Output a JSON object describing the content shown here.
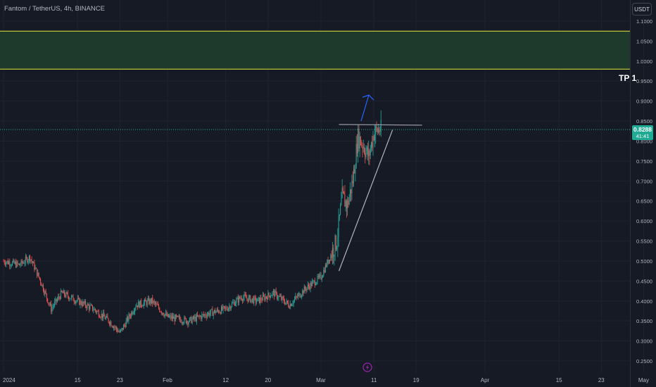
{
  "header": {
    "title": "Fantom / TetherUS, 4h, BINANCE",
    "currency": "USDT"
  },
  "current_price": {
    "price": "0.8288",
    "countdown": "41:41",
    "color": "#22ab94"
  },
  "annotations": {
    "target_label": "TP 1",
    "target_zone": {
      "low": 0.98,
      "high": 1.075,
      "fill": "#1e3a2c",
      "border": "#e8e83a"
    },
    "resistance_line": {
      "x0": "Mar 4",
      "x1": "Mar 14",
      "y": 0.845
    },
    "trend_line": {
      "x0": "Mar 4",
      "y0": 0.475,
      "x1": "Mar 14",
      "y1": 0.828
    },
    "projection_arrow": {
      "from": 0.85,
      "to": 0.915,
      "color": "#2962ff"
    }
  },
  "colors": {
    "background": "#161a25",
    "grid": "#1f2330",
    "up": "#26a69a",
    "down": "#ef5350"
  },
  "icons": [
    "lightning-icon"
  ],
  "chart_data": {
    "type": "candlestick",
    "title": "",
    "xlabel": "",
    "ylabel": "",
    "ylim": [
      0.235,
      1.11
    ],
    "y_ticks": [
      "1.1000",
      "1.0500",
      "1.0000",
      "0.9500",
      "0.9000",
      "0.8500",
      "0.8000",
      "0.7500",
      "0.7000",
      "0.6500",
      "0.6000",
      "0.5500",
      "0.5000",
      "0.4500",
      "0.4000",
      "0.3500",
      "0.3000",
      "0.2500"
    ],
    "x_ticks": [
      "2024",
      "15",
      "23",
      "Feb",
      "12",
      "20",
      "Mar",
      "11",
      "19",
      "Apr",
      "15",
      "23",
      "May"
    ],
    "approx_close_path": [
      [
        "Jan 1",
        0.5
      ],
      [
        "Jan 4",
        0.49
      ],
      [
        "Jan 6",
        0.51
      ],
      [
        "Jan 8",
        0.45
      ],
      [
        "Jan 10",
        0.38
      ],
      [
        "Jan 12",
        0.42
      ],
      [
        "Jan 15",
        0.4
      ],
      [
        "Jan 18",
        0.38
      ],
      [
        "Jan 21",
        0.35
      ],
      [
        "Jan 23",
        0.32
      ],
      [
        "Jan 26",
        0.39
      ],
      [
        "Jan 29",
        0.4
      ],
      [
        "Feb 1",
        0.36
      ],
      [
        "Feb 5",
        0.35
      ],
      [
        "Feb 9",
        0.37
      ],
      [
        "Feb 12",
        0.38
      ],
      [
        "Feb 15",
        0.41
      ],
      [
        "Feb 18",
        0.4
      ],
      [
        "Feb 21",
        0.42
      ],
      [
        "Feb 24",
        0.39
      ],
      [
        "Feb 27",
        0.43
      ],
      [
        "Mar 1",
        0.46
      ],
      [
        "Mar 3",
        0.52
      ],
      [
        "Mar 4",
        0.55
      ],
      [
        "Mar 5",
        0.66
      ],
      [
        "Mar 6",
        0.64
      ],
      [
        "Mar 7",
        0.7
      ],
      [
        "Mar 8",
        0.81
      ],
      [
        "Mar 9",
        0.79
      ],
      [
        "Mar 10",
        0.76
      ],
      [
        "Mar 11",
        0.82
      ],
      [
        "Mar 12",
        0.8288
      ]
    ]
  }
}
